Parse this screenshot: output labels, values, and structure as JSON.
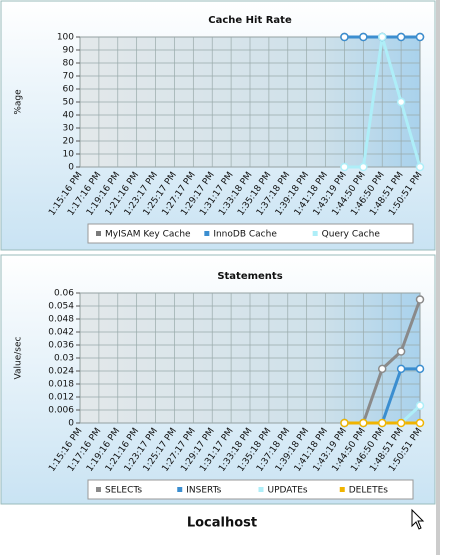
{
  "chart_data": [
    {
      "type": "line",
      "title": "Cache Hit Rate",
      "y_label": "%age",
      "categories": [
        "1:15:16 PM",
        "1:17:16 PM",
        "1:19:16 PM",
        "1:21:16 PM",
        "1:23:17 PM",
        "1:25:17 PM",
        "1:27:17 PM",
        "1:29:17 PM",
        "1:31:17 PM",
        "1:33:18 PM",
        "1:35:18 PM",
        "1:37:18 PM",
        "1:39:18 PM",
        "1:41:18 PM",
        "1:43:19 PM",
        "1:44:50 PM",
        "1:46:50 PM",
        "1:48:51 PM",
        "1:50:51 PM"
      ],
      "series": [
        {
          "name": "MyISAM Key Cache",
          "color": "#7a7a7a",
          "values": [
            null,
            null,
            null,
            null,
            null,
            null,
            null,
            null,
            null,
            null,
            null,
            null,
            null,
            null,
            100,
            100,
            100,
            100,
            100
          ]
        },
        {
          "name": "InnoDB Cache",
          "color": "#3b8ed0",
          "values": [
            null,
            null,
            null,
            null,
            null,
            null,
            null,
            null,
            null,
            null,
            null,
            null,
            null,
            null,
            100,
            100,
            100,
            100,
            100
          ]
        },
        {
          "name": "Query Cache",
          "color": "#aeeef8",
          "values": [
            null,
            null,
            null,
            null,
            null,
            null,
            null,
            null,
            null,
            null,
            null,
            null,
            null,
            null,
            0,
            0,
            100,
            50,
            0
          ]
        }
      ],
      "ylim": [
        0,
        100
      ],
      "yticks": [
        0,
        10,
        20,
        30,
        40,
        50,
        60,
        70,
        80,
        90,
        100
      ],
      "grid": true
    },
    {
      "type": "line",
      "title": "Statements",
      "y_label": "Value/sec",
      "categories": [
        "1:15:16 PM",
        "1:17:16 PM",
        "1:19:16 PM",
        "1:21:16 PM",
        "1:23:17 PM",
        "1:25:17 PM",
        "1:27:17 PM",
        "1:29:17 PM",
        "1:31:17 PM",
        "1:33:18 PM",
        "1:35:18 PM",
        "1:37:18 PM",
        "1:39:18 PM",
        "1:41:18 PM",
        "1:43:19 PM",
        "1:44:50 PM",
        "1:46:50 PM",
        "1:48:51 PM",
        "1:50:51 PM"
      ],
      "series": [
        {
          "name": "SELECTs",
          "color": "#8a8a8a",
          "values": [
            null,
            null,
            null,
            null,
            null,
            null,
            null,
            null,
            null,
            null,
            null,
            null,
            null,
            null,
            0,
            0,
            0.025,
            0.033,
            0.057
          ]
        },
        {
          "name": "INSERTs",
          "color": "#3b8ed0",
          "values": [
            null,
            null,
            null,
            null,
            null,
            null,
            null,
            null,
            null,
            null,
            null,
            null,
            null,
            null,
            0,
            0,
            0,
            0.025,
            0.025
          ]
        },
        {
          "name": "UPDATEs",
          "color": "#aeeef8",
          "values": [
            null,
            null,
            null,
            null,
            null,
            null,
            null,
            null,
            null,
            null,
            null,
            null,
            null,
            null,
            0,
            0,
            0,
            0,
            0.008
          ]
        },
        {
          "name": "DELETEs",
          "color": "#f0b400",
          "values": [
            null,
            null,
            null,
            null,
            null,
            null,
            null,
            null,
            null,
            null,
            null,
            null,
            null,
            null,
            0,
            0,
            0,
            0,
            0
          ]
        }
      ],
      "ylim": [
        0,
        0.06
      ],
      "yticks": [
        0,
        0.006,
        0.012,
        0.018,
        0.024,
        0.03,
        0.036,
        0.042,
        0.048,
        0.054,
        0.06
      ],
      "grid": true
    }
  ],
  "footer": "Localhost"
}
